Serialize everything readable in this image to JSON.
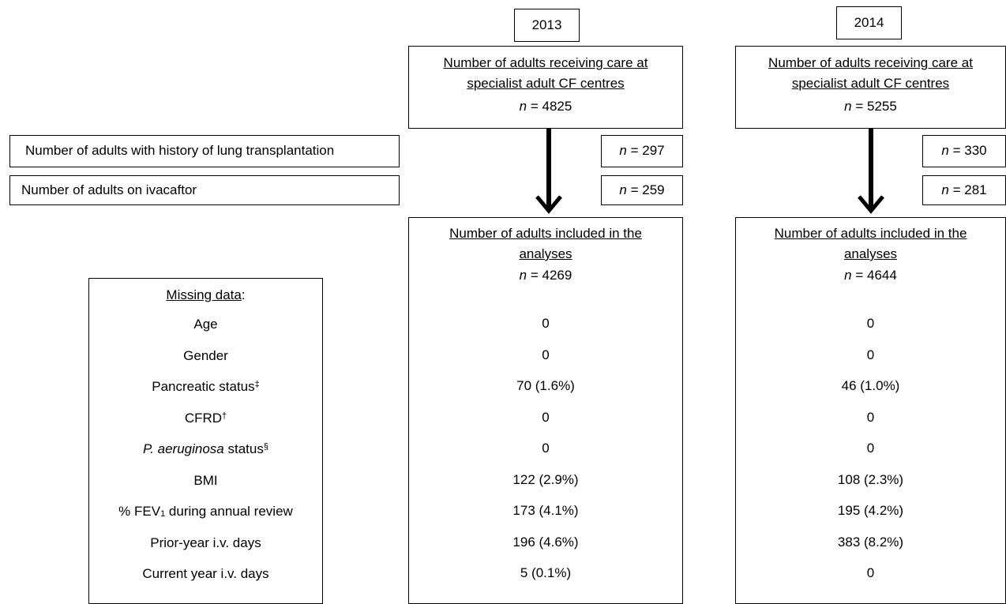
{
  "years": {
    "y2013": "2013",
    "y2014": "2014"
  },
  "centres_box": {
    "line1": "Number of adults receiving care at",
    "line2": "specialist adult CF centres",
    "n_label": "n",
    "n_sep": " = ",
    "n_2013": "4825",
    "n_2014": "5255"
  },
  "exclusions": {
    "transplant_label": "Number of adults with history of lung transplantation",
    "transplant_2013": "297",
    "transplant_2014": "330",
    "ivacaftor_label": "Number of adults on ivacaftor",
    "ivacaftor_2013": "259",
    "ivacaftor_2014": "281"
  },
  "analyses_box": {
    "line1": "Number of adults included in the",
    "line2": "analyses",
    "n_2013": "4269",
    "n_2014": "4644"
  },
  "missing": {
    "title": "Missing data",
    "title_suffix": ":",
    "rows": [
      {
        "label": "Age",
        "v2013": "0",
        "v2014": "0"
      },
      {
        "label": "Gender",
        "v2013": "0",
        "v2014": "0"
      },
      {
        "label": "Pancreatic status",
        "sup": "‡",
        "v2013": "70 (1.6%)",
        "v2014": "46 (1.0%)"
      },
      {
        "label": "CFRD",
        "sup": "†",
        "v2013": "0",
        "v2014": "0"
      },
      {
        "label_italic": "P. aeruginosa",
        "label": " status",
        "sup": "§",
        "v2013": "0",
        "v2014": "0"
      },
      {
        "label": "BMI",
        "v2013": "122 (2.9%)",
        "v2014": "108 (2.3%)"
      },
      {
        "label_pre": "% FEV",
        "sub": "1",
        "label": " during annual review",
        "v2013": "173 (4.1%)",
        "v2014": "195 (4.2%)"
      },
      {
        "label": "Prior-year i.v. days",
        "v2013": "196 (4.6%)",
        "v2014": "383 (8.2%)"
      },
      {
        "label": "Current year i.v. days",
        "v2013": "5 (0.1%)",
        "v2014": "0"
      }
    ]
  }
}
